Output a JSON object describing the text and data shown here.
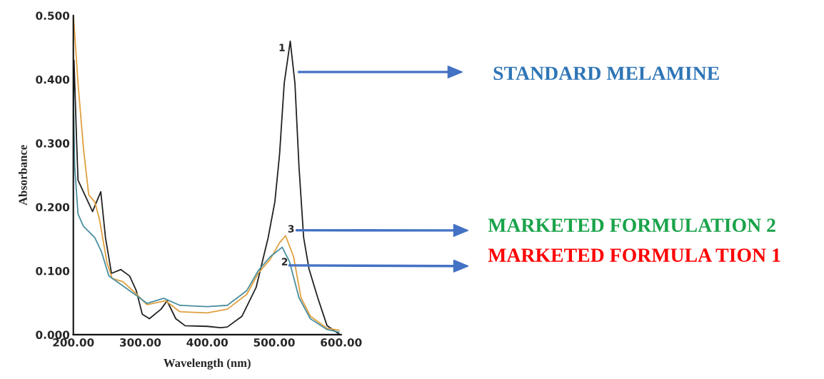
{
  "chart_data": {
    "type": "line",
    "xlabel": "Wavelength (nm)",
    "ylabel": "Absorbance",
    "xlim": [
      200,
      600
    ],
    "ylim": [
      0,
      0.5
    ],
    "xticks": [
      {
        "value": 200,
        "label": "200.00"
      },
      {
        "value": 300,
        "label": "300.00"
      },
      {
        "value": 400,
        "label": "400.00"
      },
      {
        "value": 500,
        "label": "500.00"
      },
      {
        "value": 600,
        "label": "600.00"
      }
    ],
    "yticks": [
      {
        "value": 0,
        "label": "0.000"
      },
      {
        "value": 0.1,
        "label": "0.100"
      },
      {
        "value": 0.2,
        "label": "0.200"
      },
      {
        "value": 0.3,
        "label": "0.300"
      },
      {
        "value": 0.4,
        "label": "0.400"
      },
      {
        "value": 0.5,
        "label": "0.500"
      }
    ],
    "grid": false,
    "legend": false,
    "marker": "none",
    "line_style": "solid",
    "series": [
      {
        "color": "#222222",
        "x": [
          200,
          201,
          205,
          207,
          228.7,
          241,
          248,
          257,
          271,
          284,
          294,
          303,
          313.6,
          331,
          340,
          353,
          367,
          400,
          420,
          430,
          452,
          473,
          491,
          501,
          508,
          515,
          524,
          531,
          537,
          544,
          552,
          565,
          579,
          597
        ],
        "values": [
          0.34,
          0.43,
          0.3,
          0.242,
          0.193,
          0.224,
          0.152,
          0.096,
          0.102,
          0.092,
          0.069,
          0.032,
          0.025,
          0.04,
          0.053,
          0.025,
          0.014,
          0.013,
          0.011,
          0.012,
          0.029,
          0.074,
          0.152,
          0.208,
          0.282,
          0.394,
          0.46,
          0.394,
          0.264,
          0.152,
          0.103,
          0.058,
          0.014,
          0.001
        ]
      },
      {
        "color": "#e0a040",
        "x": [
          200,
          202,
          207,
          215,
          223,
          232,
          239,
          250,
          258,
          274,
          295,
          310,
          338,
          359,
          400,
          430,
          459,
          476,
          494,
          508,
          517,
          529,
          540,
          554,
          579,
          597
        ],
        "values": [
          0.5,
          0.472,
          0.394,
          0.293,
          0.219,
          0.208,
          0.181,
          0.114,
          0.088,
          0.083,
          0.063,
          0.047,
          0.053,
          0.036,
          0.034,
          0.04,
          0.063,
          0.096,
          0.118,
          0.144,
          0.155,
          0.122,
          0.058,
          0.029,
          0.01,
          0.007
        ]
      },
      {
        "color": "#4a8fa0",
        "x": [
          200,
          202,
          207,
          215,
          232,
          242,
          253,
          268,
          296,
          310,
          335,
          359,
          400,
          430,
          459,
          476,
          494,
          512,
          523,
          537,
          554,
          579,
          597
        ],
        "values": [
          0.383,
          0.264,
          0.189,
          0.17,
          0.152,
          0.13,
          0.092,
          0.081,
          0.06,
          0.049,
          0.057,
          0.046,
          0.044,
          0.046,
          0.069,
          0.1,
          0.122,
          0.137,
          0.114,
          0.058,
          0.025,
          0.008,
          0.004
        ]
      }
    ],
    "annotations": [
      "1",
      "3",
      "2",
      "STANDARD MELAMINE",
      "MARKETED FORMULATION 2",
      "MARKETED FORMULA TION 1"
    ]
  }
}
